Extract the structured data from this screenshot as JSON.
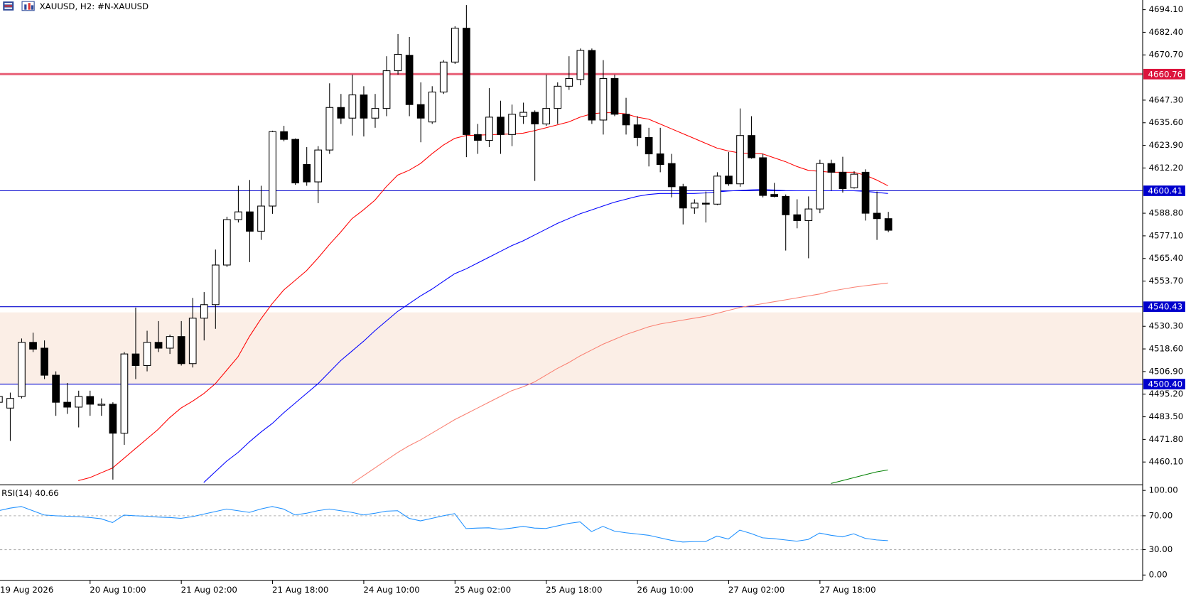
{
  "chart_data": [
    {
      "type": "candlestick",
      "title": "XAUUSD, H2:  #N-XAUUSD",
      "categories": [
        "19 Aug 2026",
        null,
        null,
        null,
        null,
        null,
        null,
        null,
        "20 Aug 10:00",
        null,
        null,
        null,
        null,
        null,
        null,
        null,
        "21 Aug 02:00",
        null,
        null,
        null,
        null,
        null,
        null,
        null,
        "21 Aug 18:00",
        null,
        null,
        null,
        null,
        null,
        null,
        null,
        "24 Aug 10:00",
        null,
        null,
        null,
        null,
        null,
        null,
        null,
        "25 Aug 02:00",
        null,
        null,
        null,
        null,
        null,
        null,
        null,
        "25 Aug 18:00",
        null,
        null,
        null,
        null,
        null,
        null,
        null,
        "26 Aug 10:00",
        null,
        null,
        null,
        null,
        null,
        null,
        null,
        "27 Aug 02:00",
        null,
        null,
        null,
        null,
        null,
        null,
        null,
        "27 Aug 18:00",
        null,
        null,
        null,
        null,
        null,
        null
      ],
      "open": [
        4491,
        4488,
        4494,
        4522,
        4519,
        4505,
        4491,
        4488.5,
        4494,
        4489.5,
        4490,
        4475,
        4516,
        4510,
        4522,
        4519,
        4525,
        4511,
        4534.5,
        4541.5,
        4562,
        4585.5,
        4589.5,
        4579.5,
        4592.5,
        4631,
        4627,
        4614,
        4605,
        4621.5,
        4643.5,
        4638,
        4650,
        4638,
        4643,
        4662.5,
        4670.5,
        4645,
        4636,
        4651.5,
        4667,
        4684.5,
        4629.5,
        4626.5,
        4638.5,
        4629.5,
        4639,
        4641,
        4635,
        4643,
        4654.5,
        4658,
        4673,
        4637,
        4658.5,
        4640,
        4634.5,
        4628,
        4619.5,
        4614.5,
        4602.5,
        4591.5,
        4594,
        4593.5,
        4608,
        4604,
        4629,
        4617.5,
        4598.5,
        4597.5,
        4588,
        4585,
        4591,
        4614.5,
        4610,
        4602,
        4610,
        4588.8,
        4586
      ],
      "high": [
        4496,
        4496,
        4524,
        4527,
        4523,
        4507,
        4501,
        4497,
        4497,
        4493,
        4491,
        4517,
        4540,
        4528,
        4533,
        4526,
        4533,
        4545,
        4548,
        4570,
        4587,
        4603,
        4606,
        4603,
        4631.5,
        4634,
        4627.5,
        4623,
        4623.5,
        4656,
        4650.5,
        4660.5,
        4654.5,
        4650.5,
        4670,
        4681.5,
        4680,
        4656.5,
        4654.5,
        4668,
        4685.5,
        4696.5,
        4635,
        4653.5,
        4647,
        4645,
        4646,
        4642,
        4660.5,
        4656.5,
        4670,
        4674,
        4674,
        4668,
        4660.5,
        4648.5,
        4639,
        4633,
        4633,
        4619.5,
        4604,
        4596,
        4600,
        4610,
        4620.5,
        4643,
        4639,
        4619.5,
        4604.5,
        4598.5,
        4596,
        4597.5,
        4616.5,
        4616.5,
        4618,
        4610.5,
        4611.5,
        4600,
        4589.5
      ],
      "low": [
        4488,
        4471,
        4493,
        4517,
        4503,
        4484,
        4485,
        4478,
        4484,
        4484,
        4451,
        4469,
        4503,
        4507,
        4517,
        4516,
        4510,
        4509,
        4523,
        4529,
        4561,
        4584,
        4563.5,
        4575,
        4588.5,
        4626,
        4603.5,
        4603,
        4594,
        4619.5,
        4635,
        4629,
        4628.5,
        4633,
        4639,
        4660.5,
        4639,
        4625.5,
        4635,
        4650.5,
        4666,
        4617.8,
        4619.5,
        4623,
        4619.5,
        4623.5,
        4635,
        4605.5,
        4634,
        4635,
        4652.6,
        4655,
        4635,
        4629.5,
        4639,
        4629.5,
        4623.5,
        4613,
        4610,
        4597,
        4583,
        4588.5,
        4584,
        4593,
        4603,
        4602.5,
        4617,
        4597,
        4597,
        4569.5,
        4581,
        4565.5,
        4588.8,
        4600.5,
        4599.5,
        4601.5,
        4585,
        4575,
        4579
      ],
      "close": [
        4494,
        4493,
        4522,
        4518.5,
        4505,
        4491,
        4488.5,
        4494,
        4490,
        4490,
        4475,
        4516,
        4510,
        4522,
        4519,
        4525,
        4511,
        4534.5,
        4541.5,
        4562,
        4585.5,
        4589.5,
        4579.5,
        4592.5,
        4631,
        4627,
        4604.5,
        4605,
        4621.5,
        4643.5,
        4638,
        4650,
        4638,
        4643,
        4662.5,
        4671,
        4645,
        4638,
        4651.5,
        4667,
        4684.5,
        4629.5,
        4626.5,
        4638.5,
        4629.5,
        4640,
        4641,
        4635,
        4643,
        4654.5,
        4658.5,
        4673,
        4637,
        4658.5,
        4640,
        4634.5,
        4628,
        4619.5,
        4614,
        4602.5,
        4591.5,
        4594,
        4593.5,
        4608,
        4604,
        4629,
        4617.5,
        4598,
        4597.5,
        4588,
        4585,
        4591,
        4614.5,
        4610,
        4601.5,
        4609,
        4588.8,
        4586,
        4580
      ],
      "up_color": "#ffffff",
      "down_color": "#000000",
      "series": [
        {
          "color": "#ff0000",
          "values": [
            null,
            null,
            null,
            null,
            null,
            null,
            null,
            4450.5,
            4452,
            4454.5,
            4457,
            4462,
            4467,
            4472,
            4477,
            4483,
            4488,
            4491.5,
            4495.5,
            4500.5,
            4507.5,
            4514.5,
            4525,
            4534,
            4542,
            4549,
            4554,
            4559,
            4565.5,
            4572.5,
            4579,
            4586,
            4590.5,
            4595.5,
            4602.5,
            4608.5,
            4611,
            4614.5,
            4619.5,
            4624,
            4627.5,
            4629,
            4629.2,
            4629.4,
            4629.6,
            4629.8,
            4630.2,
            4631.5,
            4633,
            4634.5,
            4636,
            4638.5,
            4640.2,
            4640.8,
            4640.8,
            4640.2,
            4638.5,
            4637.5,
            4635,
            4632.5,
            4630,
            4627.5,
            4625,
            4622.5,
            4621,
            4620,
            4619.7,
            4619.5,
            4617.5,
            4615.5,
            4613,
            4611,
            4610.5,
            4610,
            4610,
            4610,
            4608.5,
            4606,
            4603
          ]
        },
        {
          "color": "#0000ff",
          "values": [
            null,
            null,
            null,
            null,
            null,
            null,
            null,
            null,
            null,
            null,
            null,
            null,
            null,
            null,
            null,
            null,
            null,
            null,
            4449.5,
            4455,
            4460.5,
            4465,
            4470.5,
            4475.5,
            4480,
            4485.5,
            4490.5,
            4495.5,
            4500.5,
            4506.5,
            4512.5,
            4517.5,
            4522.5,
            4528,
            4533,
            4538,
            4542,
            4546,
            4549.5,
            4553.5,
            4557.5,
            4560,
            4563,
            4566,
            4569,
            4572,
            4574.5,
            4577.5,
            4580.5,
            4583.5,
            4586,
            4588.5,
            4590.5,
            4592.5,
            4594.5,
            4596,
            4597.5,
            4598.5,
            4599,
            4599,
            4599,
            4599,
            4599.3,
            4599.8,
            4600.3,
            4600.6,
            4600.9,
            4601.1,
            4600.8,
            4600.5,
            4600.4,
            4600.4,
            4600.4,
            4600.4,
            4600.4,
            4600.4,
            4600.1,
            4599.6,
            4599
          ]
        },
        {
          "color": "#fa8072",
          "values": [
            null,
            null,
            null,
            null,
            null,
            null,
            null,
            null,
            null,
            null,
            null,
            null,
            null,
            null,
            null,
            null,
            null,
            null,
            null,
            null,
            null,
            null,
            null,
            null,
            null,
            null,
            null,
            null,
            null,
            null,
            null,
            4449,
            4453,
            4457,
            4461,
            4465,
            4468.5,
            4471.5,
            4475,
            4478.5,
            4482,
            4485,
            4488,
            4491,
            4494,
            4497,
            4499,
            4501.5,
            4505,
            4508.5,
            4511.5,
            4515,
            4518,
            4521,
            4523.5,
            4526,
            4528,
            4530,
            4531.5,
            4532.5,
            4533.5,
            4534.5,
            4535.5,
            4537,
            4538.5,
            4540,
            4541,
            4542,
            4543,
            4544,
            4545,
            4546,
            4547,
            4548.5,
            4549.5,
            4550.5,
            4551.3,
            4552,
            4552.7
          ]
        },
        {
          "color": "#008000",
          "values": [
            null,
            null,
            null,
            null,
            null,
            null,
            null,
            null,
            null,
            null,
            null,
            null,
            null,
            null,
            null,
            null,
            null,
            null,
            null,
            null,
            null,
            null,
            null,
            null,
            null,
            null,
            null,
            null,
            null,
            null,
            null,
            null,
            null,
            null,
            null,
            null,
            null,
            null,
            null,
            null,
            null,
            null,
            null,
            null,
            null,
            null,
            null,
            null,
            null,
            null,
            null,
            null,
            null,
            null,
            null,
            null,
            null,
            null,
            null,
            null,
            null,
            null,
            null,
            null,
            null,
            null,
            null,
            null,
            null,
            null,
            null,
            null,
            null,
            4449,
            4450.5,
            4452,
            4453.5,
            4455,
            4456
          ]
        }
      ],
      "ylim": [
        4448.5,
        4699.1
      ],
      "yticks": [
        {
          "value": 4460.1,
          "label": "4460.10"
        },
        {
          "value": 4471.8,
          "label": "4471.80"
        },
        {
          "value": 4483.5,
          "label": "4483.50"
        },
        {
          "value": 4495.2,
          "label": "4495.20"
        },
        {
          "value": 4506.9,
          "label": "4506.90"
        },
        {
          "value": 4518.6,
          "label": "4518.60"
        },
        {
          "value": 4530.3,
          "label": "4530.30"
        },
        {
          "value": 4553.7,
          "label": "4553.70"
        },
        {
          "value": 4565.4,
          "label": "4565.40"
        },
        {
          "value": 4577.1,
          "label": "4577.10"
        },
        {
          "value": 4588.8,
          "label": "4588.80"
        },
        {
          "value": 4612.2,
          "label": "4612.20"
        },
        {
          "value": 4623.9,
          "label": "4623.90"
        },
        {
          "value": 4635.6,
          "label": "4635.60"
        },
        {
          "value": 4647.3,
          "label": "4647.30"
        },
        {
          "value": 4670.7,
          "label": "4670.70"
        },
        {
          "value": 4682.4,
          "label": "4682.40"
        },
        {
          "value": 4694.1,
          "label": "4694.10"
        }
      ],
      "levels": [
        4660.76,
        4600.41,
        4540.43,
        {
          "value": 4500.4,
          "label": "4500.40"
        }
      ],
      "level_colors": [
        "#e8637a",
        "#0000cd",
        "#0000cd",
        "#0000cd"
      ],
      "level_label_colors": [
        "#dc143c",
        "#0000cd",
        "#0000cd",
        "#0000cd"
      ],
      "level_widths": [
        3,
        1,
        1,
        1
      ],
      "zone": [
        4500.4,
        4537.5
      ],
      "zone_color": "#fbeee6"
    },
    {
      "type": "line",
      "title": "RSI(14) 40.66",
      "series": [
        {
          "color": "#1e90ff",
          "values": [
            76,
            79,
            81,
            76,
            71,
            70,
            69.5,
            69,
            68,
            66.5,
            62,
            70.8,
            70,
            69.5,
            68.5,
            68,
            67,
            69,
            72,
            75,
            78,
            76,
            74,
            78,
            81,
            78,
            71,
            73,
            76,
            78,
            76,
            74,
            71,
            73,
            75.5,
            76,
            67,
            64,
            67,
            70,
            72.6,
            54.9,
            55.5,
            55.8,
            54,
            55.5,
            57.5,
            55.5,
            55,
            58,
            61,
            62.8,
            51.3,
            57.5,
            52,
            50,
            48.5,
            47,
            44,
            41,
            39,
            39.5,
            39.5,
            46,
            42.5,
            53.1,
            49,
            44,
            43,
            41.5,
            40,
            42,
            49.6,
            47,
            45.1,
            48.7,
            43.4,
            41.5,
            40.66
          ]
        }
      ],
      "ylim": [
        -6.2,
        104.4
      ],
      "yticks": [
        {
          "value": 100,
          "label": "100.00"
        },
        {
          "value": 70,
          "label": "70.00"
        },
        {
          "value": 30,
          "label": "30.00"
        },
        {
          "value": 0,
          "label": "0.00"
        }
      ],
      "dashed_levels": [
        70,
        30
      ]
    }
  ]
}
